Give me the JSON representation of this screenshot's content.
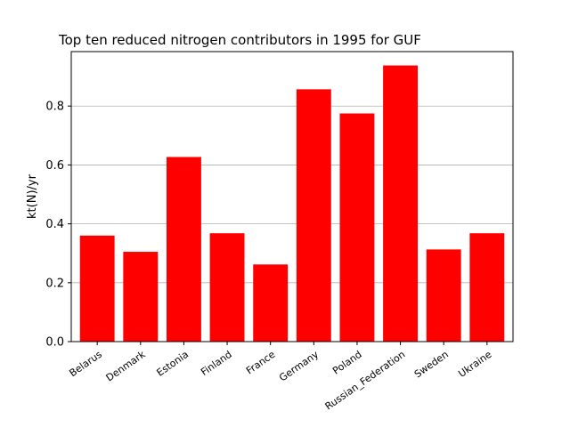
{
  "chart_data": {
    "type": "bar",
    "title": "Top ten reduced nitrogen contributors in 1995 for  GUF",
    "xlabel": "",
    "ylabel": "kt(N)/yr",
    "categories": [
      "Belarus",
      "Denmark",
      "Estonia",
      "Finland",
      "France",
      "Germany",
      "Poland",
      "Russian_Federation",
      "Sweden",
      "Ukraine"
    ],
    "values": [
      0.36,
      0.305,
      0.627,
      0.368,
      0.262,
      0.857,
      0.775,
      0.938,
      0.313,
      0.368
    ],
    "ylim": [
      0,
      0.985
    ],
    "yticks": [
      "0.0",
      "0.2",
      "0.4",
      "0.6",
      "0.8"
    ],
    "grid": "y",
    "bar_color": "#ff0000",
    "grid_color": "#b0b0b0"
  }
}
